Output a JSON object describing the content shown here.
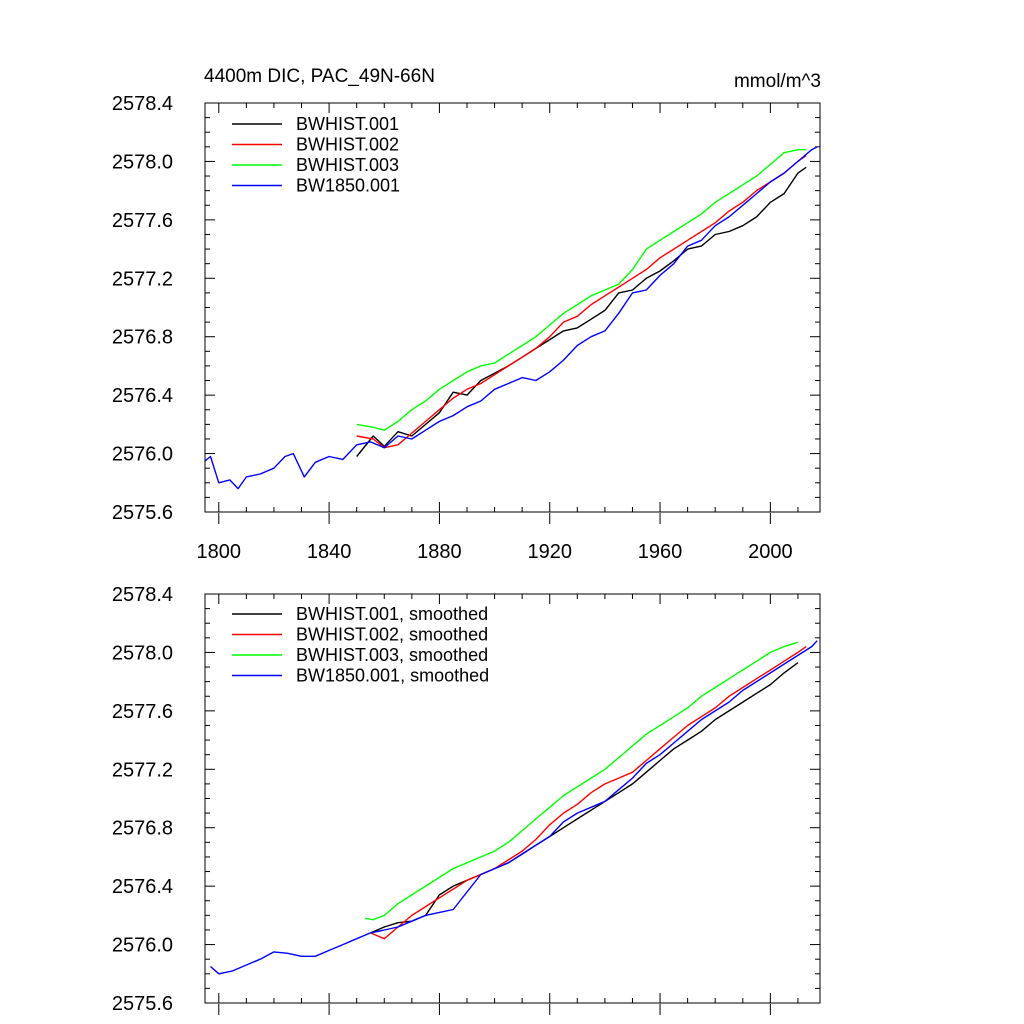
{
  "chart_data": [
    {
      "type": "line",
      "title_left": "4400m DIC, PAC_49N-66N",
      "title_right": "mmol/m^3",
      "xlabel": "",
      "ylabel": "",
      "xlim": [
        1795,
        2018
      ],
      "ylim": [
        2575.6,
        2578.4
      ],
      "x_ticks": [
        1800,
        1840,
        1880,
        1920,
        1960,
        2000
      ],
      "y_ticks": [
        2575.6,
        2576.0,
        2576.4,
        2576.8,
        2577.2,
        2577.6,
        2578.0,
        2578.4
      ],
      "y_tick_labels": [
        "2575.6",
        "2576.0",
        "2576.4",
        "2576.8",
        "2577.2",
        "2577.6",
        "2578.0",
        "2578.4"
      ],
      "x_tick_labels": [
        "1800",
        "1840",
        "1880",
        "1920",
        "1960",
        "2000"
      ],
      "legend_position": "top-left",
      "grid": false,
      "series": [
        {
          "name": "BWHIST.001",
          "color": "#000000",
          "x": [
            1850,
            1856,
            1860,
            1865,
            1870,
            1875,
            1880,
            1885,
            1890,
            1895,
            1900,
            1905,
            1910,
            1915,
            1920,
            1925,
            1930,
            1935,
            1940,
            1945,
            1950,
            1955,
            1960,
            1965,
            1970,
            1975,
            1980,
            1985,
            1990,
            1995,
            2000,
            2005,
            2010,
            2013
          ],
          "y": [
            2575.98,
            2576.12,
            2576.05,
            2576.15,
            2576.12,
            2576.2,
            2576.28,
            2576.42,
            2576.4,
            2576.5,
            2576.55,
            2576.6,
            2576.66,
            2576.72,
            2576.78,
            2576.84,
            2576.86,
            2576.92,
            2576.98,
            2577.1,
            2577.12,
            2577.2,
            2577.25,
            2577.32,
            2577.4,
            2577.42,
            2577.5,
            2577.52,
            2577.56,
            2577.62,
            2577.72,
            2577.78,
            2577.92,
            2577.96
          ]
        },
        {
          "name": "BWHIST.002",
          "color": "#ff0000",
          "x": [
            1850,
            1856,
            1860,
            1865,
            1870,
            1875,
            1880,
            1885,
            1890,
            1895,
            1900,
            1905,
            1910,
            1915,
            1920,
            1925,
            1930,
            1935,
            1940,
            1945,
            1950,
            1955,
            1960,
            1965,
            1970,
            1975,
            1980,
            1985,
            1990,
            1995,
            2000,
            2005,
            2010,
            2013
          ],
          "y": [
            2576.12,
            2576.1,
            2576.04,
            2576.06,
            2576.14,
            2576.22,
            2576.3,
            2576.38,
            2576.44,
            2576.48,
            2576.54,
            2576.6,
            2576.66,
            2576.72,
            2576.8,
            2576.9,
            2576.94,
            2577.02,
            2577.08,
            2577.14,
            2577.2,
            2577.26,
            2577.34,
            2577.4,
            2577.46,
            2577.52,
            2577.58,
            2577.66,
            2577.72,
            2577.8,
            2577.86,
            2577.92,
            2578.0,
            2578.04
          ]
        },
        {
          "name": "BWHIST.003",
          "color": "#00ff00",
          "x": [
            1850,
            1856,
            1860,
            1865,
            1870,
            1875,
            1880,
            1885,
            1890,
            1895,
            1900,
            1905,
            1910,
            1915,
            1920,
            1925,
            1930,
            1935,
            1940,
            1945,
            1950,
            1955,
            1960,
            1965,
            1970,
            1975,
            1980,
            1985,
            1990,
            1995,
            2000,
            2005,
            2010,
            2013
          ],
          "y": [
            2576.2,
            2576.18,
            2576.16,
            2576.22,
            2576.3,
            2576.36,
            2576.44,
            2576.5,
            2576.56,
            2576.6,
            2576.62,
            2576.68,
            2576.74,
            2576.8,
            2576.88,
            2576.96,
            2577.02,
            2577.08,
            2577.12,
            2577.16,
            2577.26,
            2577.4,
            2577.46,
            2577.52,
            2577.58,
            2577.64,
            2577.72,
            2577.78,
            2577.84,
            2577.9,
            2577.98,
            2578.06,
            2578.08,
            2578.08
          ]
        },
        {
          "name": "BW1850.001",
          "color": "#0000ff",
          "x": [
            1795,
            1797,
            1800,
            1804,
            1807,
            1810,
            1815,
            1820,
            1824,
            1827,
            1831,
            1835,
            1840,
            1845,
            1850,
            1855,
            1860,
            1865,
            1870,
            1875,
            1880,
            1885,
            1890,
            1895,
            1900,
            1905,
            1910,
            1915,
            1920,
            1925,
            1930,
            1935,
            1940,
            1945,
            1950,
            1955,
            1960,
            1965,
            1970,
            1975,
            1980,
            1985,
            1990,
            1995,
            2000,
            2005,
            2010,
            2015,
            2017
          ],
          "y": [
            2575.95,
            2575.98,
            2575.8,
            2575.82,
            2575.76,
            2575.84,
            2575.86,
            2575.9,
            2575.98,
            2576.0,
            2575.84,
            2575.94,
            2575.98,
            2575.96,
            2576.06,
            2576.08,
            2576.04,
            2576.12,
            2576.1,
            2576.16,
            2576.22,
            2576.26,
            2576.32,
            2576.36,
            2576.44,
            2576.48,
            2576.52,
            2576.5,
            2576.56,
            2576.64,
            2576.74,
            2576.8,
            2576.84,
            2576.96,
            2577.1,
            2577.12,
            2577.22,
            2577.3,
            2577.42,
            2577.46,
            2577.56,
            2577.62,
            2577.7,
            2577.78,
            2577.86,
            2577.92,
            2578.0,
            2578.08,
            2578.1
          ]
        }
      ]
    },
    {
      "type": "line",
      "xlabel": "",
      "ylabel": "",
      "xlim": [
        1795,
        2018
      ],
      "ylim": [
        2575.6,
        2578.4
      ],
      "x_ticks": [
        1800,
        1840,
        1880,
        1920,
        1960,
        2000
      ],
      "y_ticks": [
        2575.6,
        2576.0,
        2576.4,
        2576.8,
        2577.2,
        2577.6,
        2578.0,
        2578.4
      ],
      "y_tick_labels": [
        "2575.6",
        "2576.0",
        "2576.4",
        "2576.8",
        "2577.2",
        "2577.6",
        "2578.0",
        "2578.4"
      ],
      "legend_position": "top-left",
      "grid": false,
      "series": [
        {
          "name": "BWHIST.001, smoothed",
          "color": "#000000",
          "x": [
            1855,
            1860,
            1865,
            1870,
            1875,
            1880,
            1885,
            1890,
            1895,
            1900,
            1905,
            1910,
            1915,
            1920,
            1925,
            1930,
            1935,
            1940,
            1945,
            1950,
            1955,
            1960,
            1965,
            1970,
            1975,
            1980,
            1985,
            1990,
            1995,
            2000,
            2005,
            2010
          ],
          "y": [
            2576.08,
            2576.12,
            2576.15,
            2576.16,
            2576.2,
            2576.34,
            2576.4,
            2576.44,
            2576.48,
            2576.52,
            2576.56,
            2576.62,
            2576.68,
            2576.74,
            2576.8,
            2576.86,
            2576.92,
            2576.98,
            2577.04,
            2577.1,
            2577.18,
            2577.26,
            2577.34,
            2577.4,
            2577.46,
            2577.54,
            2577.6,
            2577.66,
            2577.72,
            2577.78,
            2577.86,
            2577.93
          ]
        },
        {
          "name": "BWHIST.002, smoothed",
          "color": "#ff0000",
          "x": [
            1855,
            1860,
            1865,
            1870,
            1875,
            1880,
            1885,
            1890,
            1895,
            1900,
            1905,
            1910,
            1915,
            1920,
            1925,
            1930,
            1935,
            1940,
            1945,
            1950,
            1955,
            1960,
            1965,
            1970,
            1975,
            1980,
            1985,
            1990,
            1995,
            2000,
            2005,
            2010,
            2013
          ],
          "y": [
            2576.08,
            2576.04,
            2576.12,
            2576.2,
            2576.26,
            2576.32,
            2576.38,
            2576.44,
            2576.48,
            2576.52,
            2576.58,
            2576.64,
            2576.72,
            2576.82,
            2576.9,
            2576.96,
            2577.04,
            2577.1,
            2577.14,
            2577.18,
            2577.26,
            2577.34,
            2577.42,
            2577.5,
            2577.56,
            2577.62,
            2577.7,
            2577.76,
            2577.82,
            2577.88,
            2577.94,
            2578.0,
            2578.04
          ]
        },
        {
          "name": "BWHIST.003, smoothed",
          "color": "#00ff00",
          "x": [
            1853,
            1856,
            1860,
            1865,
            1870,
            1875,
            1880,
            1885,
            1890,
            1895,
            1900,
            1905,
            1910,
            1915,
            1920,
            1925,
            1930,
            1935,
            1940,
            1945,
            1950,
            1955,
            1960,
            1965,
            1970,
            1975,
            1980,
            1985,
            1990,
            1995,
            2000,
            2005,
            2010
          ],
          "y": [
            2576.18,
            2576.17,
            2576.2,
            2576.28,
            2576.34,
            2576.4,
            2576.46,
            2576.52,
            2576.56,
            2576.6,
            2576.64,
            2576.7,
            2576.78,
            2576.86,
            2576.94,
            2577.02,
            2577.08,
            2577.14,
            2577.2,
            2577.28,
            2577.36,
            2577.44,
            2577.5,
            2577.56,
            2577.62,
            2577.7,
            2577.76,
            2577.82,
            2577.88,
            2577.94,
            2578.0,
            2578.04,
            2578.07
          ]
        },
        {
          "name": "BW1850.001, smoothed",
          "color": "#0000ff",
          "x": [
            1797,
            1800,
            1805,
            1810,
            1815,
            1820,
            1825,
            1830,
            1835,
            1840,
            1845,
            1850,
            1855,
            1860,
            1865,
            1870,
            1875,
            1880,
            1885,
            1890,
            1895,
            1900,
            1905,
            1910,
            1915,
            1920,
            1925,
            1930,
            1935,
            1940,
            1945,
            1950,
            1955,
            1960,
            1965,
            1970,
            1975,
            1980,
            1985,
            1990,
            1995,
            2000,
            2005,
            2010,
            2015,
            2017
          ],
          "y": [
            2575.85,
            2575.8,
            2575.82,
            2575.86,
            2575.9,
            2575.95,
            2575.94,
            2575.92,
            2575.92,
            2575.96,
            2576.0,
            2576.04,
            2576.08,
            2576.1,
            2576.12,
            2576.16,
            2576.2,
            2576.22,
            2576.24,
            2576.36,
            2576.48,
            2576.52,
            2576.56,
            2576.62,
            2576.68,
            2576.74,
            2576.84,
            2576.9,
            2576.94,
            2576.98,
            2577.06,
            2577.14,
            2577.24,
            2577.3,
            2577.38,
            2577.46,
            2577.54,
            2577.6,
            2577.66,
            2577.74,
            2577.8,
            2577.86,
            2577.92,
            2577.98,
            2578.04,
            2578.08
          ]
        }
      ]
    }
  ]
}
